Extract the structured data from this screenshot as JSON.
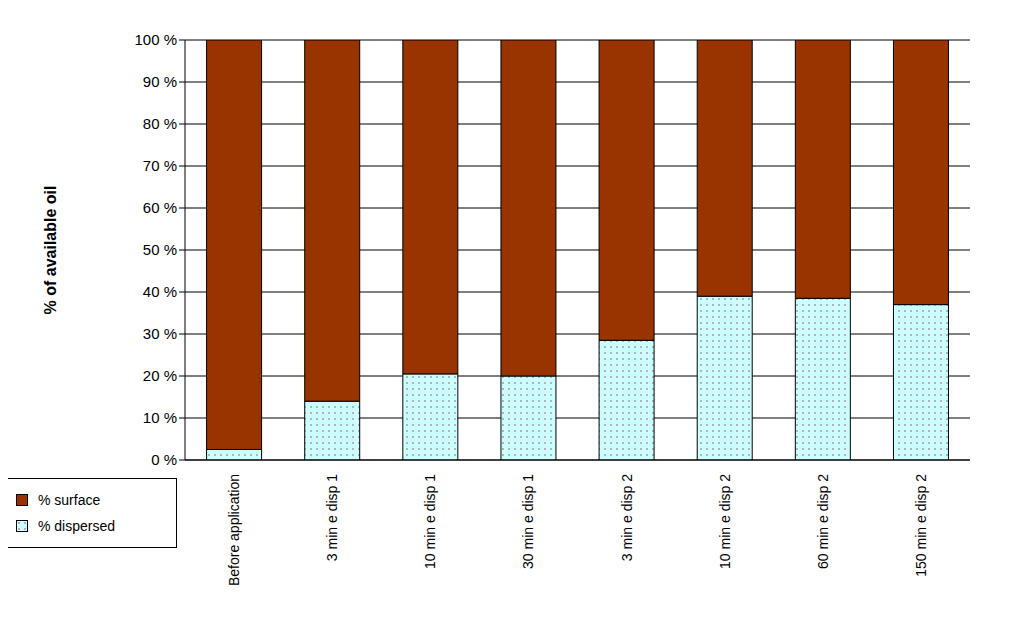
{
  "chart_data": {
    "type": "bar",
    "stacked": true,
    "grid": true,
    "legend": "lower left",
    "y_label": "% of available oil",
    "categories": [
      "Before application",
      "3 min e disp 1",
      "10 min e disp 1",
      "30 min e disp 1",
      "3 min e disp 2",
      "10 min e disp 2",
      "60 min e disp 2",
      "150 min e disp 2"
    ],
    "series": [
      {
        "name": "% dispersed",
        "color": "#ccffff",
        "values": [
          2.5,
          14,
          20.5,
          20,
          28.5,
          39,
          38.5,
          37
        ]
      },
      {
        "name": "% surface",
        "color": "#993300",
        "values": [
          97.5,
          86,
          79.5,
          80,
          71.5,
          61,
          61.5,
          63
        ]
      }
    ],
    "ylim": [
      0,
      100
    ],
    "yticks": [
      {
        "value": 0,
        "label": "0 %"
      },
      {
        "value": 10,
        "label": "10 %"
      },
      {
        "value": 20,
        "label": "20 %"
      },
      {
        "value": 30,
        "label": "30 %"
      },
      {
        "value": 40,
        "label": "40 %"
      },
      {
        "value": 50,
        "label": "50 %"
      },
      {
        "value": 60,
        "label": "60 %"
      },
      {
        "value": 70,
        "label": "70 %"
      },
      {
        "value": 80,
        "label": "80 %"
      },
      {
        "value": 90,
        "label": "90 %"
      },
      {
        "value": 100,
        "label": "100 %"
      }
    ]
  }
}
